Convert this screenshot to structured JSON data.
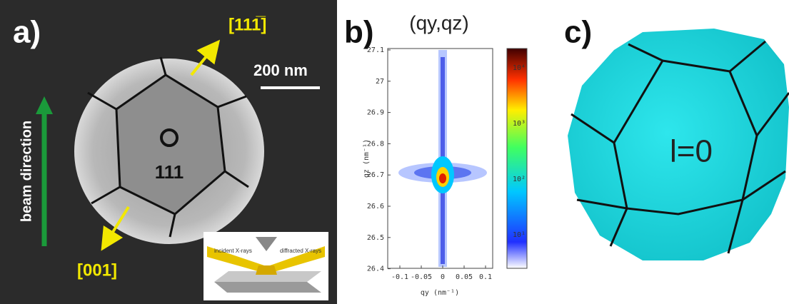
{
  "panel_a": {
    "label": "a)",
    "direction_top": "[111̅]",
    "scale_bar": "200 nm",
    "beam": "beam direction",
    "facet": "111",
    "direction_bottom": "[001]",
    "inset": {
      "incident": "incident X-rays",
      "diffracted": "diffracted X-rays"
    }
  },
  "panel_b": {
    "label": "b)",
    "title": "(qy,qz)",
    "y_label": "qz (nm⁻¹)",
    "x_label": "qy (nm⁻¹)",
    "y_ticks": [
      "27.1",
      "27",
      "26.9",
      "26.8",
      "26.7",
      "26.6",
      "26.5",
      "26.4"
    ],
    "x_ticks": [
      "-0.1",
      "-0.05",
      "0",
      "0.05",
      "0.1"
    ],
    "colorbar_ticks": [
      "10⁴",
      "10³",
      "10²",
      "10¹"
    ]
  },
  "panel_c": {
    "label": "c)",
    "facet": "l=0"
  }
}
